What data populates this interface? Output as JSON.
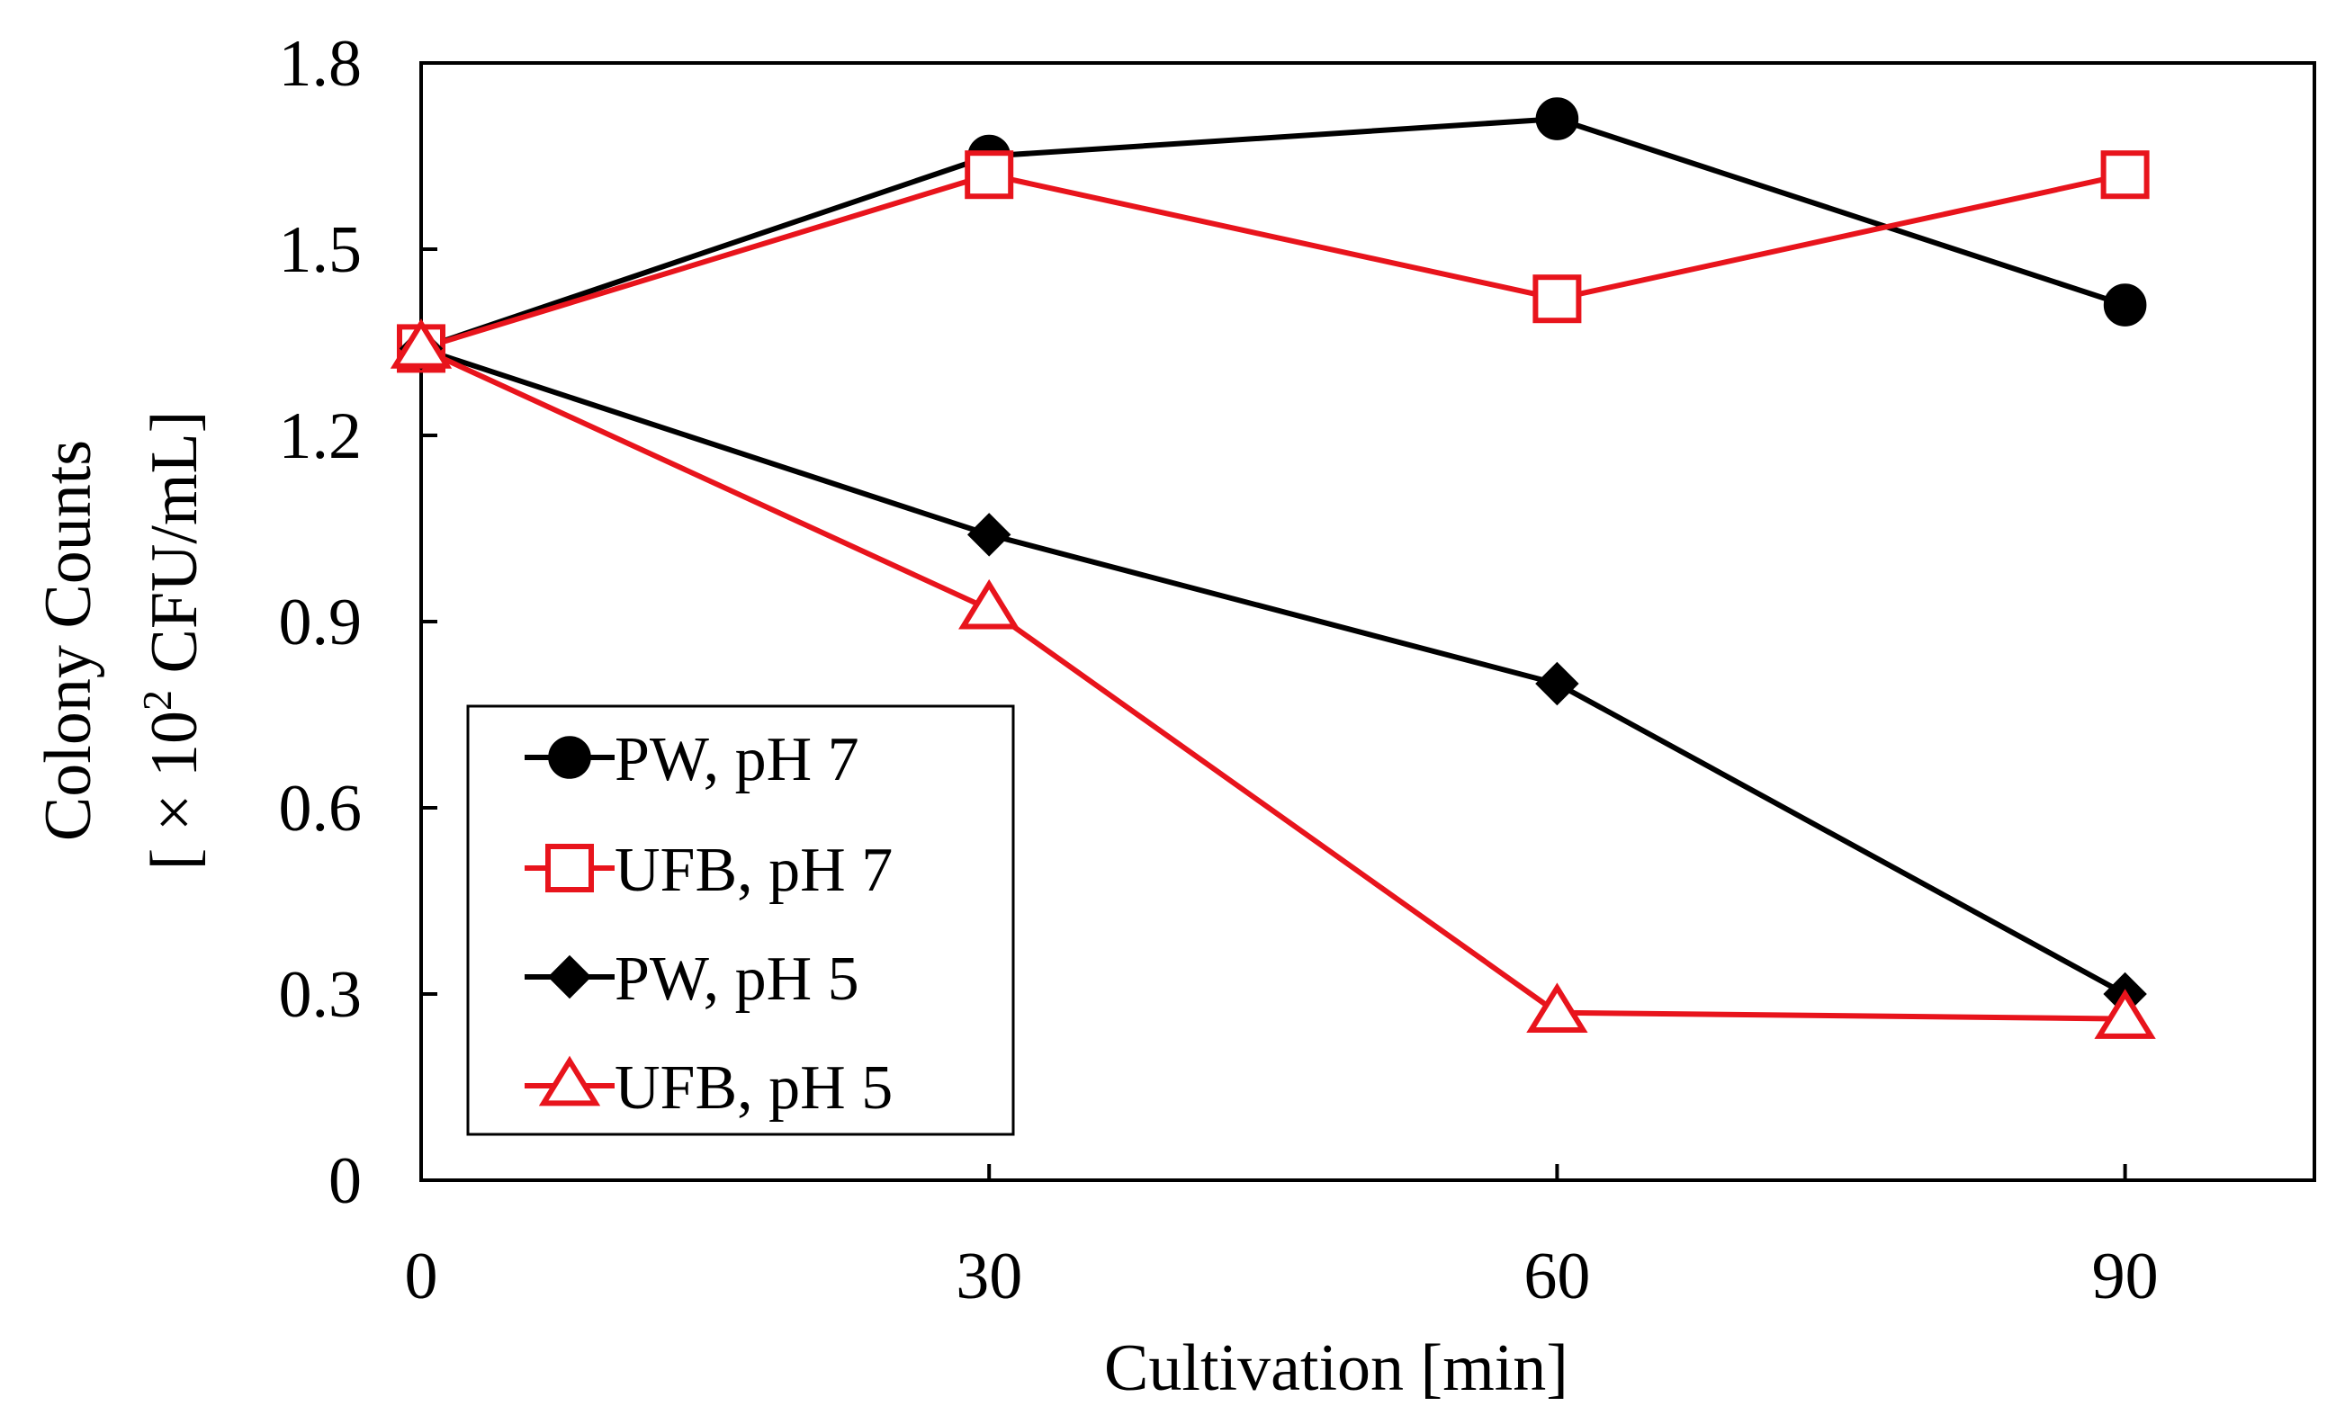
{
  "chart_data": {
    "type": "line",
    "title": "",
    "xlabel": "Cultivation  [min]",
    "ylabel_line1": "Colony Counts",
    "ylabel_line2_prefix": "[ × 10",
    "ylabel_line2_sup": "2",
    "ylabel_line2_suffix": " CFU/mL]",
    "xlim": [
      0,
      100
    ],
    "ylim": [
      0,
      1.8
    ],
    "x_ticks": [
      0,
      30,
      60,
      90
    ],
    "x_tick_labels": [
      "0",
      "30",
      "60",
      "90"
    ],
    "y_ticks": [
      0,
      0.3,
      0.6,
      0.9,
      1.2,
      1.5,
      1.8
    ],
    "y_tick_labels": [
      "0",
      "0.3",
      "0.6",
      "0.9",
      "1.2",
      "1.5",
      "1.8"
    ],
    "grid": false,
    "legend_position": "bottom-left",
    "x": [
      0,
      30,
      60,
      90
    ],
    "series": [
      {
        "name": "PW, pH 7",
        "values": [
          1.34,
          1.65,
          1.71,
          1.41
        ],
        "color": "#000000",
        "marker": "circle-filled"
      },
      {
        "name": "UFB, pH 7",
        "values": [
          1.34,
          1.62,
          1.42,
          1.62
        ],
        "color": "#e8141c",
        "marker": "square-open"
      },
      {
        "name": "PW, pH 5",
        "values": [
          1.34,
          1.04,
          0.8,
          0.3
        ],
        "color": "#000000",
        "marker": "diamond-filled"
      },
      {
        "name": "UFB, pH 5",
        "values": [
          1.34,
          0.92,
          0.27,
          0.26
        ],
        "color": "#e8141c",
        "marker": "triangle-open"
      }
    ]
  }
}
